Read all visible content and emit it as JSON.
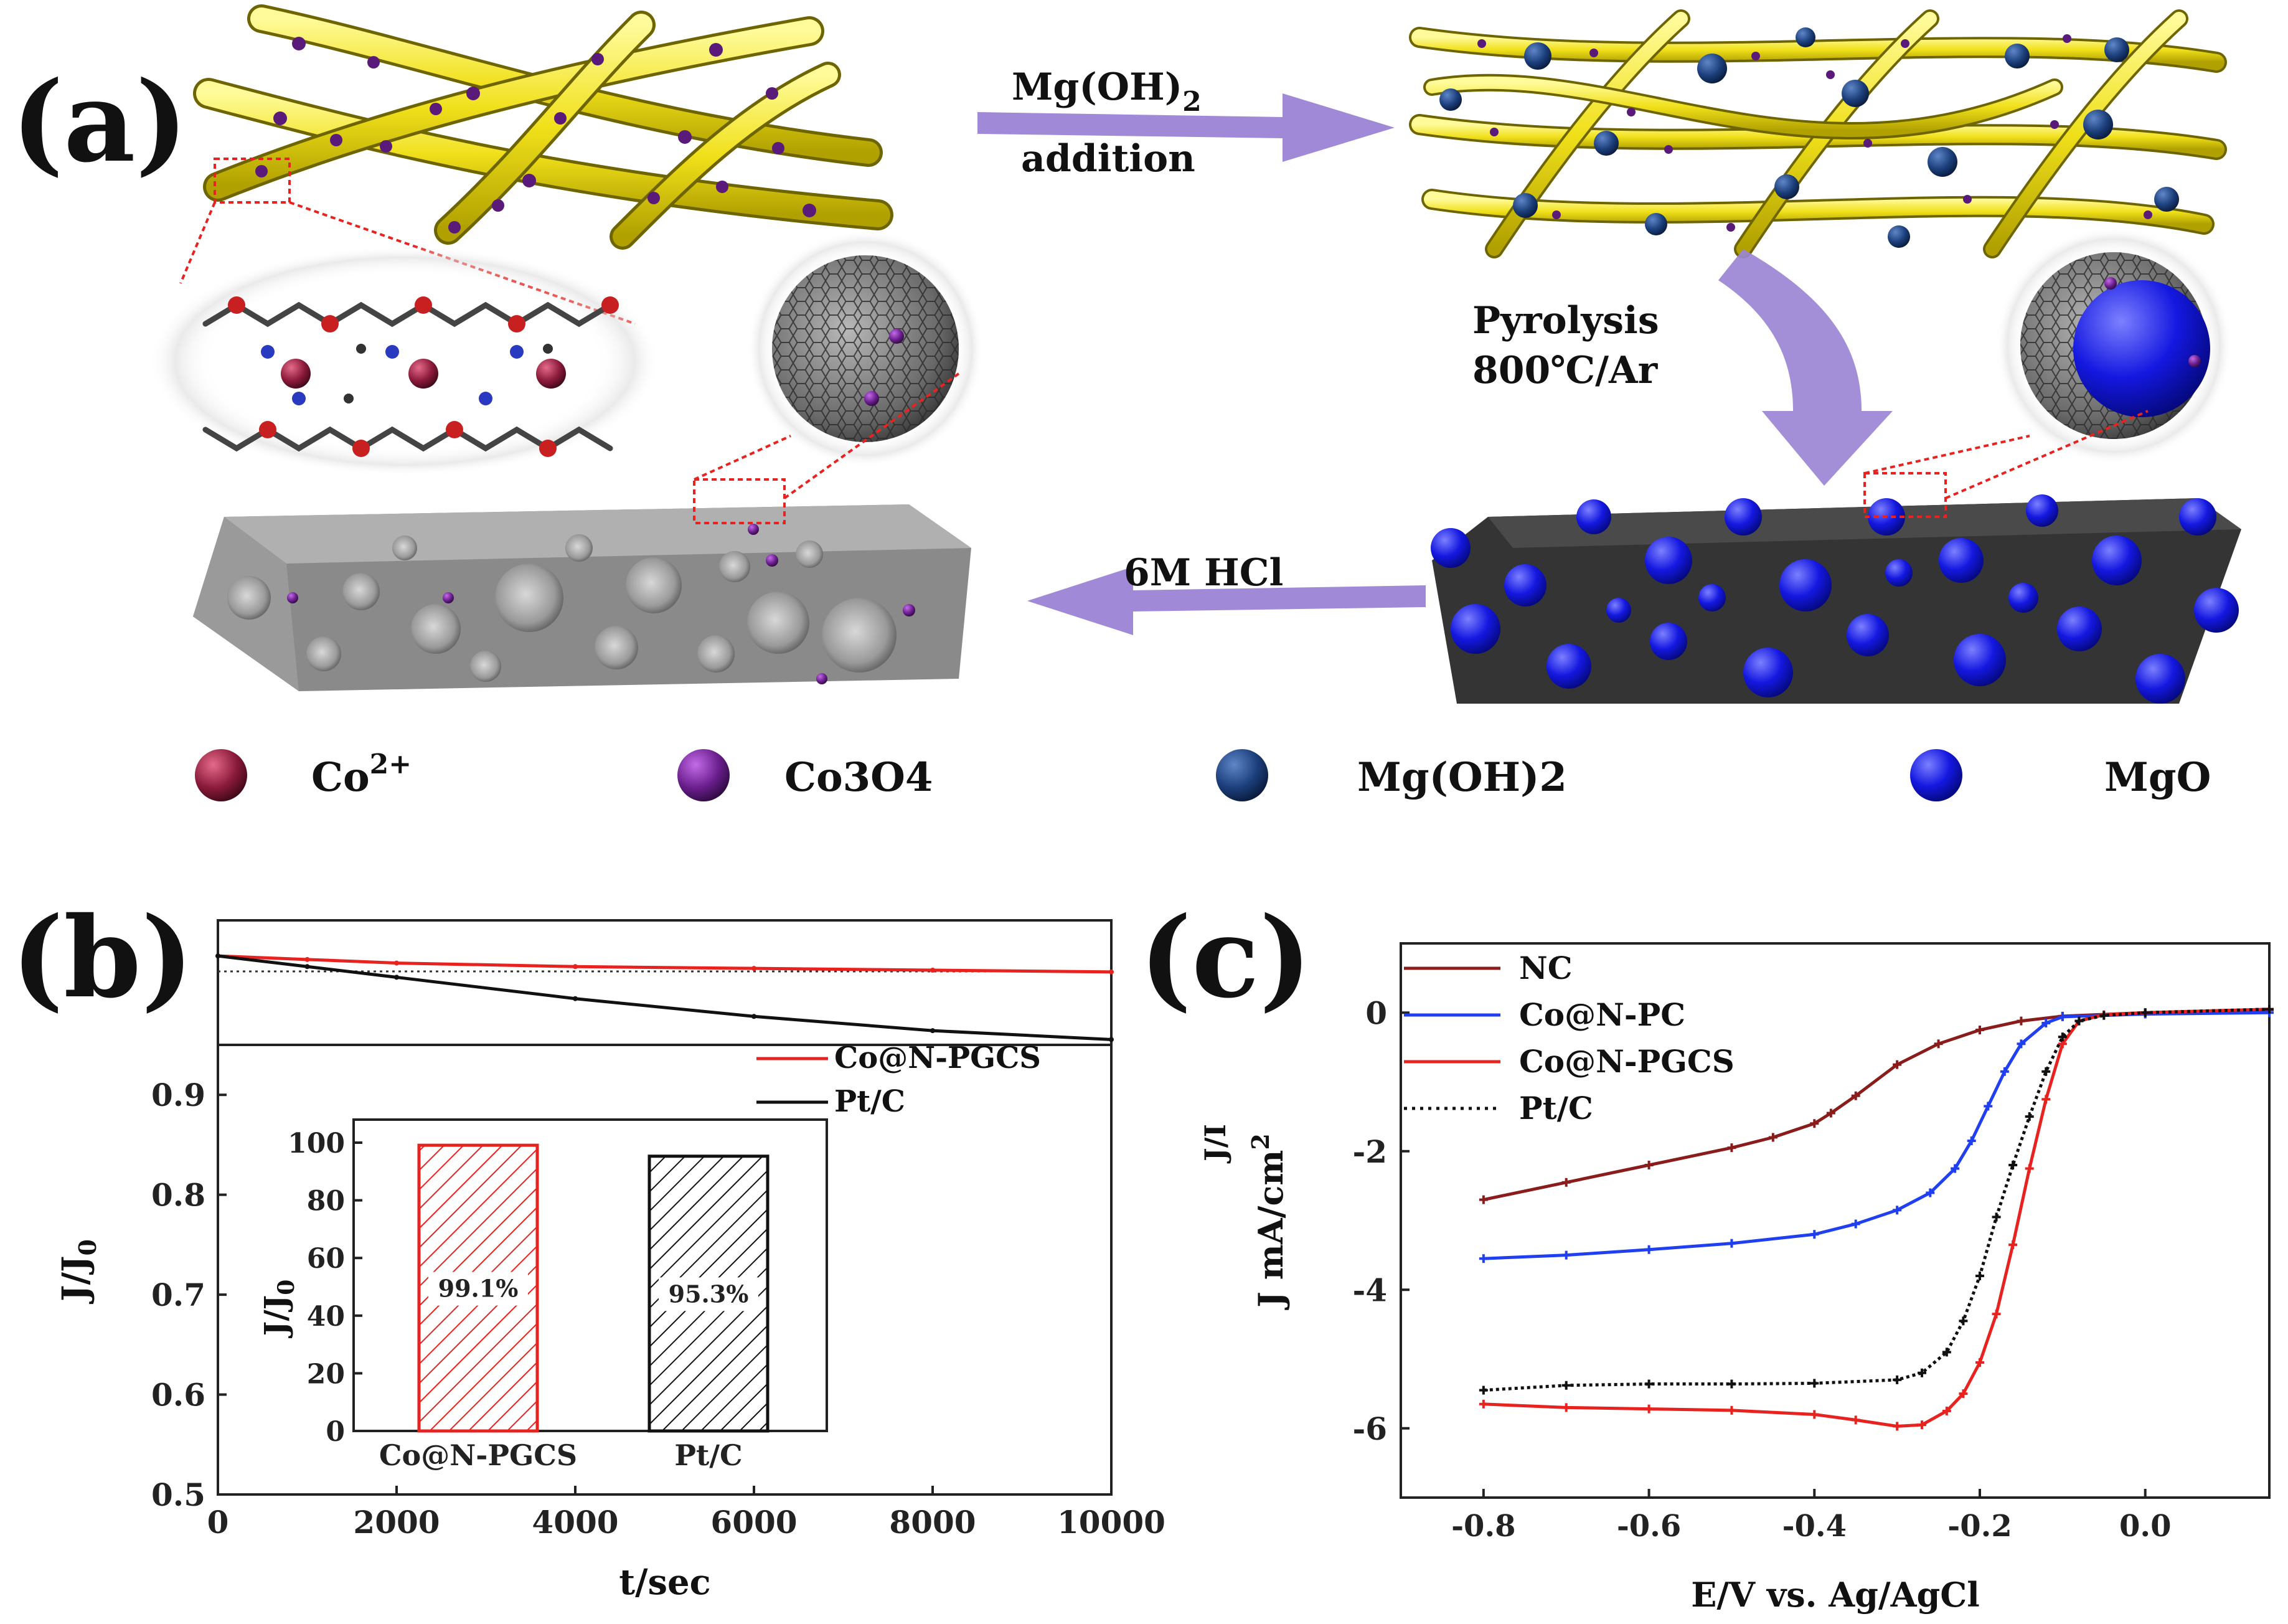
{
  "panel_a": {
    "label": "(a)",
    "step1_line1": "Mg(OH)",
    "step1_sub": "2",
    "step1_line2": "addition",
    "step2_line1": "Pyrolysis",
    "step2_line2": "800℃/Ar",
    "step3": "6M HCl",
    "legend": [
      {
        "main": "Co",
        "sup": "2+",
        "sub": "",
        "color": "#8a1a3a"
      },
      {
        "main": "Co3O4",
        "sup": "",
        "sub": "",
        "color": "#6a1e8c"
      },
      {
        "main": "Mg(OH)2",
        "sup": "",
        "sub": "",
        "color": "#1b3e7a"
      },
      {
        "main": "MgO",
        "sup": "",
        "sub": "",
        "color": "#1418e0"
      }
    ]
  },
  "chart_data": [
    {
      "type": "line",
      "panel": "(b)",
      "xlabel": "t/sec",
      "ylabel": "J/J",
      "ylabel_sub": "0",
      "xlim": [
        0,
        10000
      ],
      "ylim": [
        0.5,
        1.0
      ],
      "xticks": [
        "0",
        "2000",
        "4000",
        "6000",
        "8000",
        "10000"
      ],
      "yticks": [
        "0.5",
        "0.6",
        "0.7",
        "0.8",
        "0.9"
      ],
      "series": [
        {
          "name": "Co@N-PGCS",
          "color": "#e8231f",
          "x": [
            0,
            1000,
            2000,
            4000,
            6000,
            8000,
            10000
          ],
          "y": [
            1.0,
            0.998,
            0.996,
            0.994,
            0.993,
            0.992,
            0.991
          ]
        },
        {
          "name": "Pt/C",
          "color": "#111111",
          "x": [
            0,
            1000,
            2000,
            4000,
            6000,
            8000,
            10000
          ],
          "y": [
            1.0,
            0.994,
            0.988,
            0.976,
            0.966,
            0.958,
            0.953
          ]
        }
      ],
      "inset": {
        "type": "bar",
        "ylabel": "J/J",
        "ylabel_sub": "0",
        "ylim": [
          0,
          100
        ],
        "yticks": [
          "0",
          "20",
          "40",
          "60",
          "80",
          "100"
        ],
        "categories": [
          "Co@N-PGCS",
          "Pt/C"
        ],
        "values": [
          99.1,
          95.3
        ],
        "value_labels": [
          "99.1%",
          "95.3%"
        ],
        "colors": [
          "#e8231f",
          "#111111"
        ]
      }
    },
    {
      "type": "line",
      "panel": "(c)",
      "xlabel": "E/V vs. Ag/AgCl",
      "ylabel": "J mA/cm",
      "ylabel_sup": "2",
      "ylabel_alt": "J/I",
      "xlim": [
        -0.9,
        0.15
      ],
      "ylim": [
        -7,
        1
      ],
      "xticks": [
        "-0.8",
        "-0.6",
        "-0.4",
        "-0.2",
        "0.0"
      ],
      "yticks": [
        "0",
        "-2",
        "-4",
        "-6"
      ],
      "series": [
        {
          "name": "NC",
          "color": "#8b1c1c",
          "dash": "",
          "x": [
            -0.8,
            -0.7,
            -0.6,
            -0.5,
            -0.45,
            -0.4,
            -0.38,
            -0.35,
            -0.3,
            -0.25,
            -0.2,
            -0.15,
            -0.1,
            0.0,
            0.15
          ],
          "y": [
            -2.7,
            -2.45,
            -2.2,
            -1.95,
            -1.8,
            -1.6,
            -1.45,
            -1.2,
            -0.75,
            -0.45,
            -0.25,
            -0.12,
            -0.05,
            0.0,
            0.04
          ]
        },
        {
          "name": "Co@N-PC",
          "color": "#1f3ff0",
          "dash": "",
          "x": [
            -0.8,
            -0.7,
            -0.6,
            -0.5,
            -0.4,
            -0.35,
            -0.3,
            -0.26,
            -0.23,
            -0.21,
            -0.19,
            -0.17,
            -0.15,
            -0.12,
            -0.1,
            0.0,
            0.15
          ],
          "y": [
            -3.55,
            -3.5,
            -3.42,
            -3.33,
            -3.2,
            -3.05,
            -2.85,
            -2.6,
            -2.25,
            -1.85,
            -1.35,
            -0.85,
            -0.45,
            -0.15,
            -0.06,
            -0.02,
            0.0
          ]
        },
        {
          "name": "Co@N-PGCS",
          "color": "#e8231f",
          "dash": "",
          "x": [
            -0.8,
            -0.7,
            -0.6,
            -0.5,
            -0.4,
            -0.35,
            -0.3,
            -0.27,
            -0.24,
            -0.22,
            -0.2,
            -0.18,
            -0.16,
            -0.14,
            -0.12,
            -0.1,
            -0.08,
            -0.05,
            0.0,
            0.15
          ],
          "y": [
            -5.65,
            -5.7,
            -5.72,
            -5.74,
            -5.8,
            -5.88,
            -5.97,
            -5.95,
            -5.75,
            -5.5,
            -5.05,
            -4.35,
            -3.35,
            -2.25,
            -1.25,
            -0.45,
            -0.12,
            -0.03,
            0.0,
            0.05
          ]
        },
        {
          "name": "Pt/C",
          "color": "#111111",
          "dash": "5,5",
          "x": [
            -0.8,
            -0.7,
            -0.6,
            -0.5,
            -0.4,
            -0.3,
            -0.27,
            -0.24,
            -0.22,
            -0.2,
            -0.18,
            -0.16,
            -0.14,
            -0.12,
            -0.1,
            -0.08,
            -0.05,
            0.0,
            0.15
          ],
          "y": [
            -5.45,
            -5.38,
            -5.36,
            -5.36,
            -5.35,
            -5.3,
            -5.2,
            -4.9,
            -4.45,
            -3.8,
            -2.95,
            -2.2,
            -1.5,
            -0.85,
            -0.35,
            -0.12,
            -0.04,
            0.0,
            0.05
          ]
        }
      ]
    }
  ]
}
